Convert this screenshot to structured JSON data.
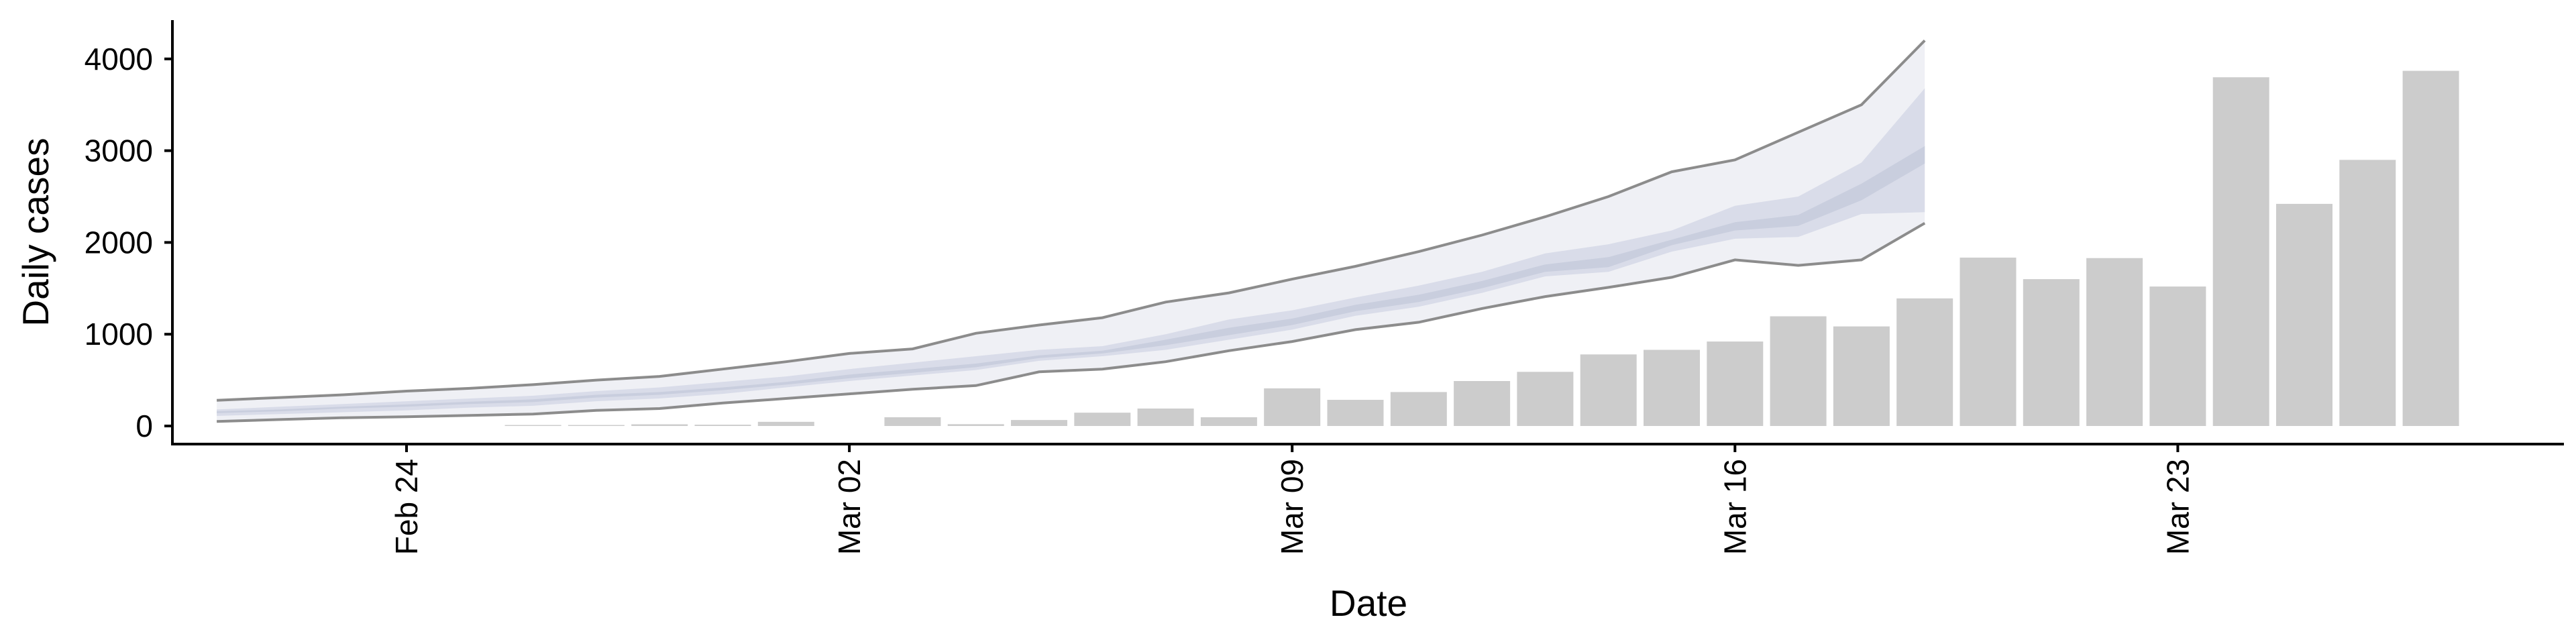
{
  "chart_data": {
    "type": "bar",
    "title": "",
    "xlabel": "Date",
    "ylabel": "Daily cases",
    "ylim": [
      -200,
      4400
    ],
    "xlim": [
      "2020-02-20",
      "2020-03-31"
    ],
    "y_ticks": [
      0,
      1000,
      2000,
      3000,
      4000
    ],
    "x_ticks": [
      {
        "date": "2020-02-24",
        "label": "Feb 24"
      },
      {
        "date": "2020-03-02",
        "label": "Mar 02"
      },
      {
        "date": "2020-03-09",
        "label": "Mar 09"
      },
      {
        "date": "2020-03-16",
        "label": "Mar 16"
      },
      {
        "date": "2020-03-23",
        "label": "Mar 23"
      }
    ],
    "grid": false,
    "legend": "none",
    "colors": {
      "bars": "#cccccc",
      "outer_band": "#eff0f5",
      "inner_band": "#d9dce9",
      "median_band": "#c9cede",
      "outer_edge": "#8c8c8c",
      "axis": "#000000"
    },
    "bars": [
      {
        "date": "2020-02-26",
        "value": 2
      },
      {
        "date": "2020-02-27",
        "value": 5
      },
      {
        "date": "2020-02-28",
        "value": 18
      },
      {
        "date": "2020-02-29",
        "value": 14
      },
      {
        "date": "2020-03-01",
        "value": 45
      },
      {
        "date": "2020-03-03",
        "value": 95
      },
      {
        "date": "2020-03-04",
        "value": 20
      },
      {
        "date": "2020-03-05",
        "value": 65
      },
      {
        "date": "2020-03-06",
        "value": 145
      },
      {
        "date": "2020-03-07",
        "value": 190
      },
      {
        "date": "2020-03-08",
        "value": 95
      },
      {
        "date": "2020-03-09",
        "value": 410
      },
      {
        "date": "2020-03-10",
        "value": 285
      },
      {
        "date": "2020-03-11",
        "value": 370
      },
      {
        "date": "2020-03-12",
        "value": 490
      },
      {
        "date": "2020-03-13",
        "value": 590
      },
      {
        "date": "2020-03-14",
        "value": 780
      },
      {
        "date": "2020-03-15",
        "value": 830
      },
      {
        "date": "2020-03-16",
        "value": 920
      },
      {
        "date": "2020-03-17",
        "value": 1195
      },
      {
        "date": "2020-03-18",
        "value": 1085
      },
      {
        "date": "2020-03-19",
        "value": 1390
      },
      {
        "date": "2020-03-20",
        "value": 1835
      },
      {
        "date": "2020-03-21",
        "value": 1600
      },
      {
        "date": "2020-03-22",
        "value": 1830
      },
      {
        "date": "2020-03-23",
        "value": 1520
      },
      {
        "date": "2020-03-24",
        "value": 3800
      },
      {
        "date": "2020-03-25",
        "value": 2420
      },
      {
        "date": "2020-03-26",
        "value": 2900
      },
      {
        "date": "2020-03-27",
        "value": 3870
      }
    ],
    "bands": {
      "dates": [
        "2020-02-21",
        "2020-02-22",
        "2020-02-23",
        "2020-02-24",
        "2020-02-25",
        "2020-02-26",
        "2020-02-27",
        "2020-02-28",
        "2020-02-29",
        "2020-03-01",
        "2020-03-02",
        "2020-03-03",
        "2020-03-04",
        "2020-03-05",
        "2020-03-06",
        "2020-03-07",
        "2020-03-08",
        "2020-03-09",
        "2020-03-10",
        "2020-03-11",
        "2020-03-12",
        "2020-03-13",
        "2020-03-14",
        "2020-03-15",
        "2020-03-16",
        "2020-03-17",
        "2020-03-18",
        "2020-03-19"
      ],
      "outer": {
        "low": [
          50,
          70,
          90,
          100,
          115,
          130,
          170,
          190,
          250,
          300,
          350,
          400,
          440,
          590,
          620,
          700,
          820,
          920,
          1050,
          1130,
          1280,
          1410,
          1510,
          1620,
          1810,
          1750,
          1810,
          2210
        ],
        "high": [
          280,
          310,
          340,
          380,
          410,
          450,
          500,
          540,
          620,
          700,
          790,
          840,
          1010,
          1100,
          1180,
          1350,
          1450,
          1600,
          1740,
          1900,
          2080,
          2280,
          2500,
          2770,
          2900,
          3200,
          3500,
          4200
        ]
      },
      "inner": {
        "low": [
          110,
          130,
          150,
          170,
          200,
          220,
          270,
          300,
          350,
          420,
          490,
          550,
          610,
          710,
          760,
          830,
          940,
          1050,
          1200,
          1300,
          1450,
          1630,
          1680,
          1900,
          2040,
          2060,
          2310,
          2330
        ],
        "high": [
          180,
          210,
          240,
          270,
          300,
          330,
          380,
          420,
          480,
          540,
          620,
          690,
          760,
          830,
          870,
          1000,
          1160,
          1260,
          1400,
          1530,
          1680,
          1880,
          1980,
          2130,
          2400,
          2500,
          2870,
          3680
        ]
      },
      "median": {
        "low": [
          140,
          160,
          190,
          210,
          240,
          260,
          310,
          340,
          390,
          450,
          520,
          580,
          640,
          740,
          790,
          880,
          990,
          1100,
          1250,
          1350,
          1500,
          1680,
          1730,
          1970,
          2130,
          2180,
          2460,
          2860
        ],
        "high": [
          160,
          180,
          210,
          235,
          265,
          290,
          340,
          370,
          420,
          480,
          560,
          620,
          680,
          770,
          820,
          940,
          1070,
          1170,
          1320,
          1430,
          1580,
          1760,
          1840,
          2030,
          2220,
          2300,
          2640,
          3050
        ]
      }
    }
  }
}
